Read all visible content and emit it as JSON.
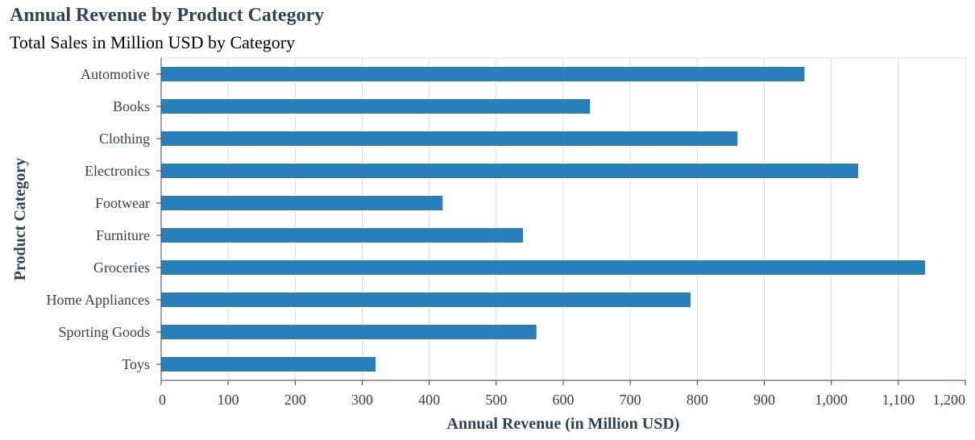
{
  "chart_data": {
    "type": "bar",
    "orientation": "horizontal",
    "title": "Annual Revenue by Product Category",
    "subtitle": "Total Sales in Million USD by Category",
    "xlabel": "Annual Revenue (in Million USD)",
    "ylabel": "Product Category",
    "categories": [
      "Automotive",
      "Books",
      "Clothing",
      "Electronics",
      "Footwear",
      "Furniture",
      "Groceries",
      "Home Appliances",
      "Sporting Goods",
      "Toys"
    ],
    "values": [
      960,
      640,
      860,
      1040,
      420,
      540,
      1140,
      790,
      560,
      320
    ],
    "xlim": [
      0,
      1200
    ],
    "xticks": [
      0,
      100,
      200,
      300,
      400,
      500,
      600,
      700,
      800,
      900,
      1000,
      1100,
      1200
    ],
    "xtick_labels": [
      "0",
      "100",
      "200",
      "300",
      "400",
      "500",
      "600",
      "700",
      "800",
      "900",
      "1,000",
      "1,100",
      "1,200"
    ],
    "grid": true,
    "bar_color": "#2a7fbb",
    "grid_color": "#dddddd",
    "axis_color": "#2f4356",
    "text_color": "#2f4356"
  }
}
